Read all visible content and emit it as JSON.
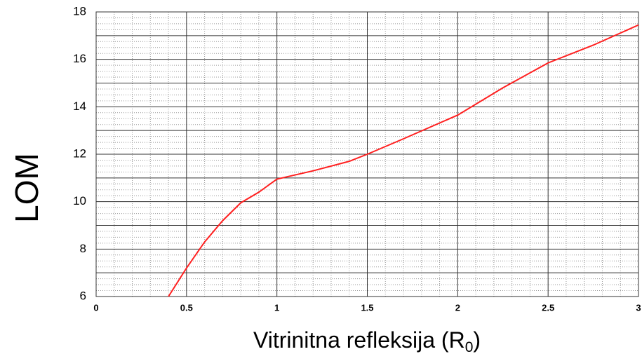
{
  "chart_data": {
    "type": "line",
    "y_label": "LOM",
    "x_label": [
      "Vitrinitna refleksija (R",
      "0",
      ")"
    ],
    "x": [
      0.4,
      0.5,
      0.6,
      0.7,
      0.8,
      0.9,
      1.0,
      1.2,
      1.4,
      1.5,
      1.7,
      2.0,
      2.25,
      2.5,
      2.75,
      3.0
    ],
    "series": [
      {
        "color": "#ff2020",
        "values": [
          6.0,
          7.2,
          8.3,
          9.2,
          9.95,
          10.4,
          10.95,
          11.3,
          11.7,
          12.0,
          12.65,
          13.65,
          14.8,
          15.85,
          16.6,
          17.45
        ]
      }
    ],
    "xlim": [
      0,
      3
    ],
    "ylim": [
      6,
      18
    ],
    "xticks": [
      0,
      0.5,
      1,
      1.5,
      2,
      2.5,
      3
    ],
    "yticks": [
      6,
      8,
      10,
      12,
      14,
      16,
      18
    ],
    "grid": true,
    "minor_grid": {
      "x": 5,
      "y": 8
    }
  }
}
